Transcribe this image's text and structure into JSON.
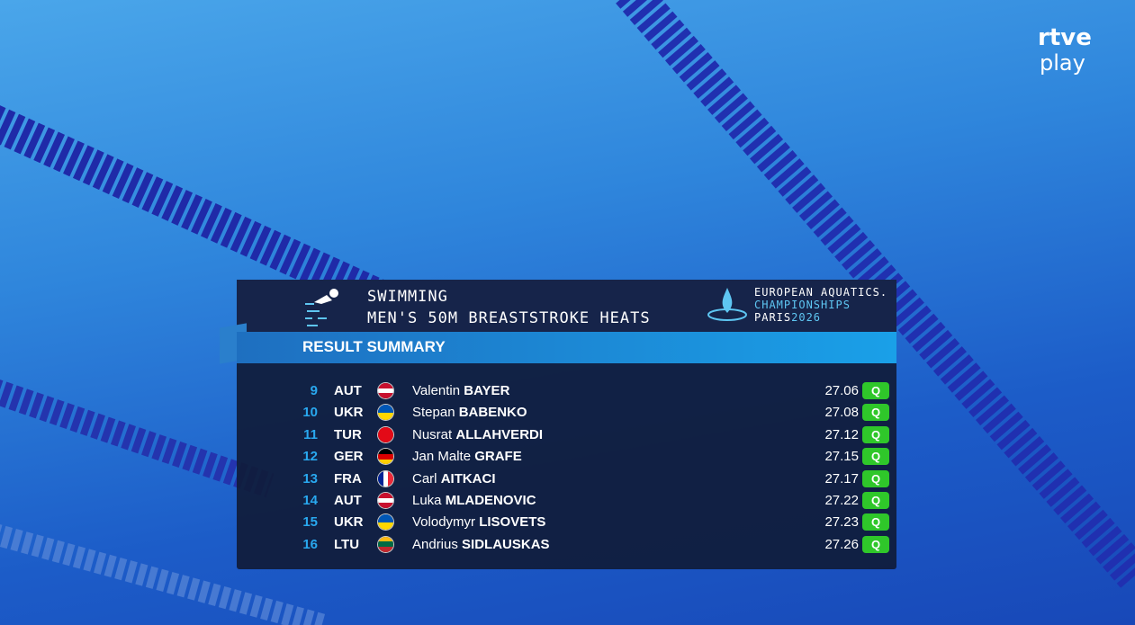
{
  "logo": {
    "line1": "rtve",
    "line2": "play"
  },
  "header": {
    "sport": "SWIMMING",
    "event": "MEN'S 50M BREASTSTROKE HEATS",
    "organizer": {
      "line1": "EUROPEAN AQUATICS.",
      "line2": "CHAMPIONSHIPS",
      "city": "PARIS",
      "year": "2026"
    }
  },
  "section_title": "RESULT SUMMARY",
  "table": {
    "rows": [
      {
        "rank": 9,
        "country": "AUT",
        "flag": [
          "#c8102e",
          "#ffffff",
          "#c8102e"
        ],
        "first_name": "Valentin",
        "last_name": "BAYER",
        "time": "27.06",
        "qualifier": "Q"
      },
      {
        "rank": 10,
        "country": "UKR",
        "flag": [
          "#0057b7",
          "#ffd700"
        ],
        "first_name": "Stepan",
        "last_name": "BABENKO",
        "time": "27.08",
        "qualifier": "Q"
      },
      {
        "rank": 11,
        "country": "TUR",
        "flag": [
          "#e30a17"
        ],
        "first_name": "Nusrat",
        "last_name": "ALLAHVERDI",
        "time": "27.12",
        "qualifier": "Q"
      },
      {
        "rank": 12,
        "country": "GER",
        "flag": [
          "#000000",
          "#dd0000",
          "#ffce00"
        ],
        "first_name": "Jan Malte",
        "last_name": "GRAFE",
        "time": "27.15",
        "qualifier": "Q"
      },
      {
        "rank": 13,
        "country": "FRA",
        "flag": [
          "#002395",
          "#ffffff",
          "#ed2939"
        ],
        "first_name": "Carl",
        "last_name": "AITKACI",
        "time": "27.17",
        "qualifier": "Q"
      },
      {
        "rank": 14,
        "country": "AUT",
        "flag": [
          "#c8102e",
          "#ffffff",
          "#c8102e"
        ],
        "first_name": "Luka",
        "last_name": "MLADENOVIC",
        "time": "27.22",
        "qualifier": "Q"
      },
      {
        "rank": 15,
        "country": "UKR",
        "flag": [
          "#0057b7",
          "#ffd700"
        ],
        "first_name": "Volodymyr",
        "last_name": "LISOVETS",
        "time": "27.23",
        "qualifier": "Q"
      },
      {
        "rank": 16,
        "country": "LTU",
        "flag": [
          "#fdb913",
          "#006a44",
          "#c1272d"
        ],
        "first_name": "Andrius",
        "last_name": "SIDLAUSKAS",
        "time": "27.26",
        "qualifier": "Q"
      }
    ]
  }
}
